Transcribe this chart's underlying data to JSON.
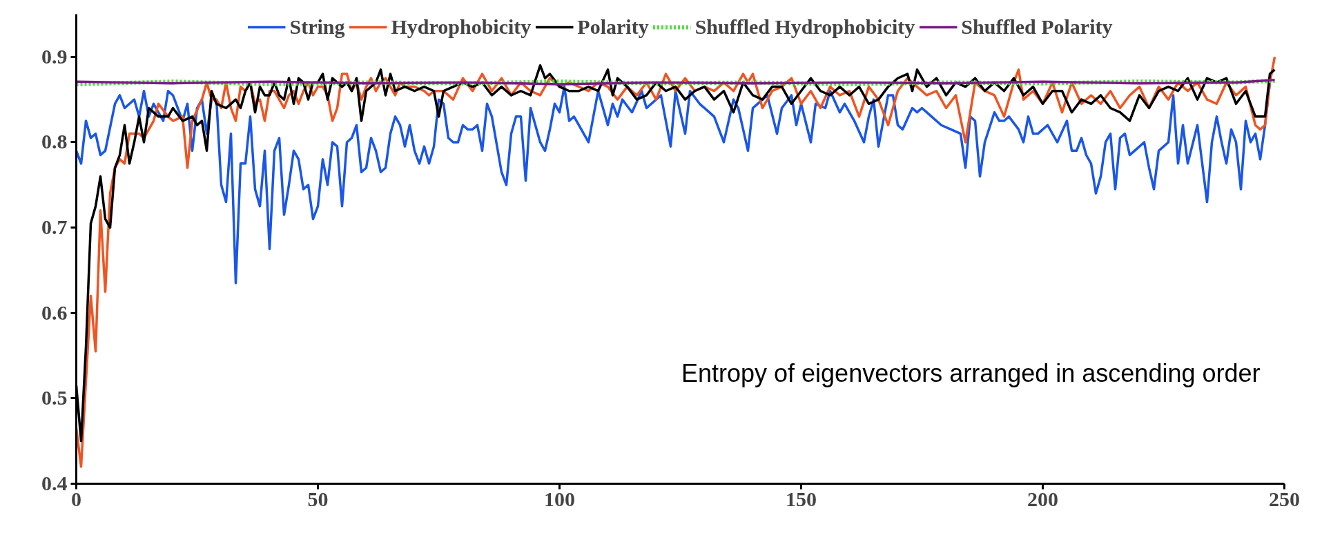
{
  "chart_data": {
    "type": "line",
    "annotations": [
      "Entropy of eigenvectors arranged in ascending order"
    ],
    "xlim": [
      0,
      250
    ],
    "xticks": [
      0,
      50,
      100,
      150,
      200,
      250
    ],
    "ylim": [
      0.4,
      0.95
    ],
    "yticks": [
      0.4,
      0.5,
      0.6,
      0.7,
      0.8,
      0.9
    ],
    "grid": false,
    "legend": "top",
    "line_style": "solid",
    "marker": "none",
    "series": [
      {
        "name": "String",
        "color": "#1a56e8",
        "x": [
          0,
          1,
          2,
          3,
          4,
          5,
          6,
          8,
          9,
          10,
          12,
          13,
          14,
          15,
          16,
          18,
          19,
          20,
          22,
          23,
          24,
          25,
          26,
          27,
          28,
          29,
          30,
          31,
          32,
          33,
          34,
          35,
          36,
          37,
          38,
          39,
          40,
          41,
          42,
          43,
          44,
          45,
          46,
          47,
          48,
          49,
          50,
          51,
          52,
          53,
          54,
          55,
          56,
          57,
          58,
          59,
          60,
          61,
          62,
          63,
          64,
          65,
          66,
          67,
          68,
          69,
          70,
          71,
          72,
          73,
          74,
          75,
          76,
          77,
          78,
          79,
          80,
          81,
          82,
          83,
          84,
          85,
          86,
          88,
          89,
          90,
          91,
          92,
          93,
          94,
          96,
          97,
          98,
          99,
          100,
          101,
          102,
          103,
          104,
          106,
          108,
          110,
          111,
          112,
          113,
          115,
          117,
          118,
          120,
          121,
          123,
          124,
          126,
          127,
          129,
          131,
          132,
          134,
          136,
          137,
          139,
          140,
          141,
          143,
          145,
          146,
          148,
          149,
          150,
          152,
          153,
          155,
          156,
          158,
          159,
          161,
          163,
          164,
          165,
          166,
          168,
          169,
          170,
          171,
          173,
          174,
          175,
          177,
          179,
          181,
          183,
          184,
          185,
          186,
          187,
          188,
          190,
          191,
          192,
          193,
          195,
          196,
          197,
          198,
          199,
          201,
          203,
          205,
          206,
          207,
          208,
          209,
          210,
          211,
          212,
          213,
          214,
          215,
          216,
          217,
          218,
          219,
          221,
          222,
          223,
          224,
          226,
          227,
          228,
          229,
          230,
          232,
          234,
          235,
          236,
          237,
          238,
          239,
          240,
          241,
          242,
          243,
          244,
          245,
          246,
          247
        ],
        "values": [
          0.79,
          0.775,
          0.825,
          0.805,
          0.81,
          0.785,
          0.79,
          0.845,
          0.855,
          0.84,
          0.85,
          0.83,
          0.86,
          0.83,
          0.845,
          0.825,
          0.86,
          0.855,
          0.825,
          0.845,
          0.79,
          0.84,
          0.85,
          0.81,
          0.85,
          0.85,
          0.75,
          0.73,
          0.81,
          0.635,
          0.775,
          0.775,
          0.83,
          0.745,
          0.725,
          0.79,
          0.675,
          0.79,
          0.805,
          0.715,
          0.75,
          0.79,
          0.78,
          0.745,
          0.75,
          0.71,
          0.725,
          0.78,
          0.75,
          0.8,
          0.795,
          0.725,
          0.8,
          0.805,
          0.82,
          0.765,
          0.77,
          0.805,
          0.79,
          0.765,
          0.77,
          0.81,
          0.83,
          0.82,
          0.795,
          0.82,
          0.79,
          0.775,
          0.795,
          0.775,
          0.795,
          0.85,
          0.845,
          0.805,
          0.8,
          0.8,
          0.82,
          0.815,
          0.815,
          0.82,
          0.79,
          0.845,
          0.83,
          0.765,
          0.75,
          0.81,
          0.83,
          0.83,
          0.755,
          0.84,
          0.8,
          0.79,
          0.815,
          0.845,
          0.835,
          0.865,
          0.825,
          0.83,
          0.82,
          0.8,
          0.86,
          0.82,
          0.845,
          0.83,
          0.85,
          0.835,
          0.86,
          0.84,
          0.85,
          0.855,
          0.795,
          0.86,
          0.81,
          0.86,
          0.845,
          0.835,
          0.83,
          0.8,
          0.85,
          0.84,
          0.79,
          0.84,
          0.845,
          0.855,
          0.81,
          0.84,
          0.855,
          0.82,
          0.845,
          0.8,
          0.845,
          0.84,
          0.86,
          0.835,
          0.845,
          0.825,
          0.8,
          0.83,
          0.85,
          0.795,
          0.855,
          0.855,
          0.82,
          0.815,
          0.84,
          0.835,
          0.84,
          0.83,
          0.82,
          0.815,
          0.81,
          0.77,
          0.83,
          0.825,
          0.76,
          0.8,
          0.835,
          0.825,
          0.825,
          0.83,
          0.815,
          0.8,
          0.83,
          0.81,
          0.81,
          0.82,
          0.8,
          0.825,
          0.79,
          0.79,
          0.805,
          0.785,
          0.775,
          0.74,
          0.76,
          0.8,
          0.81,
          0.745,
          0.805,
          0.81,
          0.785,
          0.79,
          0.8,
          0.77,
          0.745,
          0.79,
          0.8,
          0.855,
          0.775,
          0.82,
          0.775,
          0.82,
          0.73,
          0.8,
          0.83,
          0.8,
          0.775,
          0.815,
          0.8,
          0.745,
          0.825,
          0.8,
          0.81,
          0.78,
          0.82,
          0.87
        ]
      },
      {
        "name": "Hydrophobicity",
        "color": "#ee5522",
        "x": [
          0,
          1,
          3,
          4,
          5,
          6,
          7,
          8,
          9,
          10,
          11,
          13,
          14,
          16,
          17,
          19,
          20,
          22,
          23,
          24,
          26,
          27,
          28,
          29,
          30,
          31,
          32,
          33,
          34,
          35,
          36,
          37,
          38,
          39,
          40,
          41,
          42,
          43,
          44,
          45,
          46,
          47,
          48,
          49,
          50,
          51,
          52,
          53,
          54,
          55,
          56,
          57,
          58,
          59,
          60,
          61,
          62,
          63,
          64,
          65,
          66,
          67,
          68,
          70,
          72,
          73,
          74,
          76,
          78,
          80,
          82,
          84,
          86,
          88,
          90,
          92,
          94,
          96,
          98,
          100,
          102,
          104,
          106,
          108,
          110,
          112,
          114,
          116,
          118,
          120,
          122,
          124,
          126,
          128,
          130,
          132,
          134,
          136,
          138,
          139,
          140,
          142,
          144,
          146,
          148,
          150,
          152,
          154,
          156,
          158,
          160,
          162,
          164,
          166,
          168,
          170,
          172,
          174,
          176,
          178,
          180,
          182,
          184,
          186,
          188,
          190,
          192,
          194,
          195,
          196,
          198,
          200,
          202,
          204,
          206,
          208,
          210,
          212,
          214,
          216,
          218,
          220,
          222,
          224,
          226,
          228,
          230,
          232,
          234,
          236,
          238,
          240,
          242,
          244,
          245,
          246,
          247,
          248
        ],
        "values": [
          0.465,
          0.42,
          0.62,
          0.555,
          0.72,
          0.625,
          0.74,
          0.77,
          0.78,
          0.775,
          0.81,
          0.81,
          0.805,
          0.825,
          0.845,
          0.83,
          0.825,
          0.83,
          0.77,
          0.825,
          0.85,
          0.87,
          0.85,
          0.85,
          0.84,
          0.87,
          0.84,
          0.825,
          0.865,
          0.86,
          0.87,
          0.845,
          0.85,
          0.825,
          0.86,
          0.86,
          0.85,
          0.84,
          0.855,
          0.86,
          0.845,
          0.86,
          0.87,
          0.855,
          0.865,
          0.865,
          0.855,
          0.825,
          0.84,
          0.88,
          0.88,
          0.86,
          0.87,
          0.85,
          0.865,
          0.875,
          0.86,
          0.87,
          0.875,
          0.865,
          0.855,
          0.87,
          0.865,
          0.865,
          0.86,
          0.855,
          0.86,
          0.86,
          0.85,
          0.875,
          0.86,
          0.88,
          0.86,
          0.875,
          0.855,
          0.87,
          0.86,
          0.855,
          0.875,
          0.865,
          0.87,
          0.865,
          0.86,
          0.87,
          0.865,
          0.85,
          0.865,
          0.855,
          0.87,
          0.85,
          0.88,
          0.86,
          0.875,
          0.86,
          0.865,
          0.86,
          0.87,
          0.86,
          0.88,
          0.87,
          0.88,
          0.84,
          0.86,
          0.865,
          0.875,
          0.845,
          0.86,
          0.84,
          0.865,
          0.855,
          0.86,
          0.83,
          0.865,
          0.85,
          0.82,
          0.86,
          0.875,
          0.865,
          0.855,
          0.86,
          0.84,
          0.855,
          0.8,
          0.87,
          0.86,
          0.855,
          0.83,
          0.87,
          0.885,
          0.85,
          0.86,
          0.845,
          0.87,
          0.835,
          0.87,
          0.845,
          0.855,
          0.845,
          0.86,
          0.84,
          0.855,
          0.865,
          0.84,
          0.865,
          0.85,
          0.87,
          0.86,
          0.87,
          0.85,
          0.845,
          0.87,
          0.855,
          0.865,
          0.82,
          0.815,
          0.82,
          0.87,
          0.9
        ]
      },
      {
        "name": "Polarity",
        "color": "#000000",
        "x": [
          0,
          1,
          2,
          3,
          4,
          5,
          6,
          7,
          8,
          9,
          10,
          11,
          12,
          13,
          14,
          15,
          17,
          19,
          20,
          22,
          24,
          25,
          26,
          27,
          28,
          29,
          31,
          32,
          33,
          34,
          35,
          36,
          37,
          38,
          39,
          40,
          41,
          42,
          43,
          44,
          45,
          46,
          47,
          48,
          49,
          50,
          51,
          52,
          53,
          55,
          56,
          57,
          58,
          59,
          60,
          61,
          62,
          63,
          64,
          65,
          66,
          68,
          70,
          72,
          74,
          75,
          76,
          78,
          80,
          82,
          84,
          86,
          88,
          90,
          92,
          94,
          96,
          97,
          98,
          100,
          102,
          104,
          106,
          108,
          110,
          111,
          112,
          114,
          116,
          118,
          120,
          122,
          124,
          126,
          128,
          130,
          132,
          134,
          136,
          138,
          140,
          142,
          144,
          146,
          148,
          150,
          152,
          154,
          156,
          158,
          160,
          162,
          164,
          166,
          168,
          170,
          172,
          173,
          174,
          176,
          178,
          180,
          182,
          184,
          186,
          188,
          190,
          192,
          194,
          196,
          198,
          200,
          202,
          204,
          206,
          208,
          210,
          212,
          214,
          216,
          218,
          220,
          222,
          224,
          226,
          228,
          230,
          232,
          234,
          236,
          238,
          240,
          242,
          244,
          246,
          247,
          248
        ],
        "values": [
          0.515,
          0.45,
          0.56,
          0.705,
          0.725,
          0.76,
          0.71,
          0.7,
          0.77,
          0.785,
          0.82,
          0.775,
          0.8,
          0.83,
          0.8,
          0.84,
          0.83,
          0.83,
          0.84,
          0.825,
          0.83,
          0.82,
          0.825,
          0.79,
          0.86,
          0.845,
          0.84,
          0.845,
          0.85,
          0.84,
          0.86,
          0.87,
          0.835,
          0.865,
          0.855,
          0.855,
          0.87,
          0.855,
          0.85,
          0.875,
          0.845,
          0.875,
          0.87,
          0.85,
          0.87,
          0.87,
          0.88,
          0.85,
          0.875,
          0.865,
          0.87,
          0.86,
          0.875,
          0.825,
          0.86,
          0.865,
          0.87,
          0.885,
          0.855,
          0.88,
          0.86,
          0.865,
          0.86,
          0.865,
          0.86,
          0.83,
          0.86,
          0.865,
          0.87,
          0.865,
          0.87,
          0.855,
          0.865,
          0.855,
          0.86,
          0.855,
          0.89,
          0.875,
          0.88,
          0.865,
          0.86,
          0.86,
          0.865,
          0.86,
          0.885,
          0.855,
          0.875,
          0.865,
          0.85,
          0.855,
          0.87,
          0.86,
          0.865,
          0.85,
          0.86,
          0.865,
          0.85,
          0.86,
          0.835,
          0.87,
          0.855,
          0.85,
          0.865,
          0.865,
          0.845,
          0.86,
          0.875,
          0.86,
          0.855,
          0.865,
          0.855,
          0.865,
          0.845,
          0.85,
          0.865,
          0.875,
          0.88,
          0.86,
          0.885,
          0.865,
          0.875,
          0.855,
          0.87,
          0.865,
          0.875,
          0.86,
          0.87,
          0.86,
          0.875,
          0.855,
          0.865,
          0.845,
          0.86,
          0.86,
          0.835,
          0.85,
          0.845,
          0.855,
          0.84,
          0.835,
          0.825,
          0.855,
          0.84,
          0.86,
          0.865,
          0.86,
          0.875,
          0.85,
          0.875,
          0.87,
          0.875,
          0.845,
          0.86,
          0.83,
          0.83,
          0.88,
          0.885
        ]
      },
      {
        "name": "Shuffled Hydrophobicity",
        "color": "#55dd44",
        "line_style": "dotted",
        "x": [
          0,
          20,
          40,
          60,
          80,
          100,
          120,
          140,
          160,
          180,
          200,
          220,
          240,
          248
        ],
        "values": [
          0.868,
          0.871,
          0.868,
          0.87,
          0.869,
          0.871,
          0.869,
          0.87,
          0.868,
          0.87,
          0.869,
          0.871,
          0.87,
          0.872
        ]
      },
      {
        "name": "Shuffled Polarity",
        "color": "#7a1a88",
        "x": [
          0,
          20,
          40,
          60,
          80,
          100,
          120,
          140,
          160,
          180,
          200,
          220,
          240,
          248
        ],
        "values": [
          0.871,
          0.869,
          0.871,
          0.869,
          0.87,
          0.868,
          0.87,
          0.869,
          0.87,
          0.869,
          0.871,
          0.869,
          0.87,
          0.873
        ]
      }
    ]
  }
}
